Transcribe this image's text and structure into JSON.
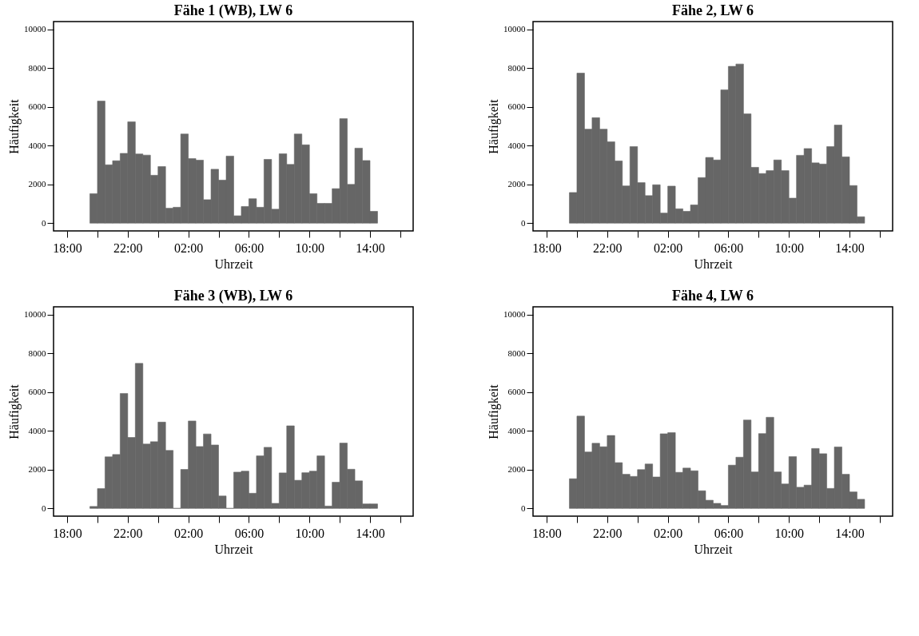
{
  "chart_data": [
    {
      "type": "histogram",
      "title": "Fähe 1 (WB), LW 6",
      "xlabel": "Uhrzeit",
      "ylabel": "Häufigkeit",
      "color": "#666666",
      "grid": false,
      "bins": [
        "2000-01-01T19:30",
        "2000-01-01T20:00",
        "2000-01-01T20:30",
        "2000-01-01T21:00",
        "2000-01-01T21:30",
        "2000-01-01T22:00",
        "2000-01-01T22:30",
        "2000-01-01T23:00",
        "2000-01-01T23:30",
        "2000-01-02T00:00",
        "2000-01-02T00:30",
        "2000-01-02T01:00",
        "2000-01-02T01:30",
        "2000-01-02T02:00",
        "2000-01-02T02:30",
        "2000-01-02T03:00",
        "2000-01-02T03:30",
        "2000-01-02T04:00",
        "2000-01-02T04:30",
        "2000-01-02T05:00",
        "2000-01-02T05:30",
        "2000-01-02T06:00",
        "2000-01-02T06:30",
        "2000-01-02T07:00",
        "2000-01-02T07:30",
        "2000-01-02T08:00",
        "2000-01-02T08:30",
        "2000-01-02T09:00",
        "2000-01-02T09:30",
        "2000-01-02T10:00",
        "2000-01-02T10:30",
        "2000-01-02T11:00",
        "2000-01-02T11:30",
        "2000-01-02T12:00",
        "2000-01-02T12:30",
        "2000-01-02T13:00",
        "2000-01-02T13:30",
        "2000-01-02T14:00",
        "2000-01-02T14:30"
      ],
      "values": [
        1520,
        6300,
        3010,
        3220,
        3600,
        5230,
        3570,
        3510,
        2470,
        2920,
        770,
        820,
        4600,
        3330,
        3250,
        1210,
        2780,
        2220,
        3460,
        380,
        860,
        1260,
        820,
        3290,
        720,
        3580,
        3030,
        4600,
        4040,
        1520,
        1020,
        1020,
        1780,
        5390,
        2000,
        3870,
        3230,
        610
      ],
      "xlim": [
        "2000-01-01T17:06",
        "2000-01-02T16:51"
      ],
      "ylim": [
        -400,
        10400
      ],
      "yticks": [
        0,
        2000,
        4000,
        6000,
        8000,
        10000
      ],
      "xticks": [
        {
          "value": "2000-01-01T18:00",
          "label": "18:00"
        },
        {
          "value": "2000-01-01T20:00",
          "label": null
        },
        {
          "value": "2000-01-01T22:00",
          "label": "22:00"
        },
        {
          "value": "2000-01-02T00:00",
          "label": null
        },
        {
          "value": "2000-01-02T02:00",
          "label": "02:00"
        },
        {
          "value": "2000-01-02T04:00",
          "label": null
        },
        {
          "value": "2000-01-02T06:00",
          "label": "06:00"
        },
        {
          "value": "2000-01-02T08:00",
          "label": null
        },
        {
          "value": "2000-01-02T10:00",
          "label": "10:00"
        },
        {
          "value": "2000-01-02T12:00",
          "label": null
        },
        {
          "value": "2000-01-02T14:00",
          "label": "14:00"
        },
        {
          "value": "2000-01-02T16:00",
          "label": null
        }
      ]
    },
    {
      "type": "histogram",
      "title": "Fähe 2, LW 6",
      "xlabel": "Uhrzeit",
      "ylabel": "Häufigkeit",
      "color": "#666666",
      "grid": false,
      "bins": [
        "2000-01-01T19:30",
        "2000-01-01T20:00",
        "2000-01-01T20:30",
        "2000-01-01T21:00",
        "2000-01-01T21:30",
        "2000-01-01T22:00",
        "2000-01-01T22:30",
        "2000-01-01T23:00",
        "2000-01-01T23:30",
        "2000-01-02T00:00",
        "2000-01-02T00:30",
        "2000-01-02T01:00",
        "2000-01-02T01:30",
        "2000-01-02T02:00",
        "2000-01-02T02:30",
        "2000-01-02T03:00",
        "2000-01-02T03:30",
        "2000-01-02T04:00",
        "2000-01-02T04:30",
        "2000-01-02T05:00",
        "2000-01-02T05:30",
        "2000-01-02T06:00",
        "2000-01-02T06:30",
        "2000-01-02T07:00",
        "2000-01-02T07:30",
        "2000-01-02T08:00",
        "2000-01-02T08:30",
        "2000-01-02T09:00",
        "2000-01-02T09:30",
        "2000-01-02T10:00",
        "2000-01-02T10:30",
        "2000-01-02T11:00",
        "2000-01-02T11:30",
        "2000-01-02T12:00",
        "2000-01-02T12:30",
        "2000-01-02T13:00",
        "2000-01-02T13:30",
        "2000-01-02T14:00",
        "2000-01-02T14:30",
        "2000-01-02T15:00"
      ],
      "values": [
        1580,
        7740,
        4850,
        5440,
        4850,
        4200,
        3210,
        1920,
        3950,
        2090,
        1420,
        1980,
        520,
        1910,
        740,
        610,
        940,
        2350,
        3390,
        3260,
        6880,
        8090,
        8210,
        5640,
        2880,
        2560,
        2710,
        3260,
        2710,
        1290,
        3500,
        3850,
        3110,
        3050,
        3950,
        5060,
        3420,
        1940,
        330
      ],
      "xlim": [
        "2000-01-01T17:06",
        "2000-01-02T16:51"
      ],
      "ylim": [
        -400,
        10400
      ],
      "yticks": [
        0,
        2000,
        4000,
        6000,
        8000,
        10000
      ],
      "xticks": [
        {
          "value": "2000-01-01T18:00",
          "label": "18:00"
        },
        {
          "value": "2000-01-01T20:00",
          "label": null
        },
        {
          "value": "2000-01-01T22:00",
          "label": "22:00"
        },
        {
          "value": "2000-01-02T00:00",
          "label": null
        },
        {
          "value": "2000-01-02T02:00",
          "label": "02:00"
        },
        {
          "value": "2000-01-02T04:00",
          "label": null
        },
        {
          "value": "2000-01-02T06:00",
          "label": "06:00"
        },
        {
          "value": "2000-01-02T08:00",
          "label": null
        },
        {
          "value": "2000-01-02T10:00",
          "label": "10:00"
        },
        {
          "value": "2000-01-02T12:00",
          "label": null
        },
        {
          "value": "2000-01-02T14:00",
          "label": "14:00"
        },
        {
          "value": "2000-01-02T16:00",
          "label": null
        }
      ]
    },
    {
      "type": "histogram",
      "title": "Fähe 3 (WB), LW 6",
      "xlabel": "Uhrzeit",
      "ylabel": "Häufigkeit",
      "color": "#666666",
      "grid": false,
      "bins": [
        "2000-01-01T19:30",
        "2000-01-01T20:00",
        "2000-01-01T20:30",
        "2000-01-01T21:00",
        "2000-01-01T21:30",
        "2000-01-01T22:00",
        "2000-01-01T22:30",
        "2000-01-01T23:00",
        "2000-01-01T23:30",
        "2000-01-02T00:00",
        "2000-01-02T00:30",
        "2000-01-02T01:00",
        "2000-01-02T01:30",
        "2000-01-02T02:00",
        "2000-01-02T02:30",
        "2000-01-02T03:00",
        "2000-01-02T03:30",
        "2000-01-02T04:00",
        "2000-01-02T04:30",
        "2000-01-02T05:00",
        "2000-01-02T05:30",
        "2000-01-02T06:00",
        "2000-01-02T06:30",
        "2000-01-02T07:00",
        "2000-01-02T07:30",
        "2000-01-02T08:00",
        "2000-01-02T08:30",
        "2000-01-02T09:00",
        "2000-01-02T09:30",
        "2000-01-02T10:00",
        "2000-01-02T10:30",
        "2000-01-02T11:00",
        "2000-01-02T11:30",
        "2000-01-02T12:00",
        "2000-01-02T12:30",
        "2000-01-02T13:00",
        "2000-01-02T13:30",
        "2000-01-02T14:00",
        "2000-01-02T14:30"
      ],
      "values": [
        100,
        1020,
        2660,
        2780,
        5930,
        3660,
        7480,
        3320,
        3440,
        4450,
        2990,
        0,
        2010,
        4510,
        3190,
        3840,
        3270,
        640,
        0,
        1870,
        1920,
        780,
        2710,
        3150,
        260,
        1830,
        4260,
        1450,
        1840,
        1920,
        2710,
        120,
        1350,
        3370,
        2020,
        1420,
        230,
        230
      ],
      "xlim": [
        "2000-01-01T17:06",
        "2000-01-02T16:51"
      ],
      "ylim": [
        -400,
        10400
      ],
      "yticks": [
        0,
        2000,
        4000,
        6000,
        8000,
        10000
      ],
      "xticks": [
        {
          "value": "2000-01-01T18:00",
          "label": "18:00"
        },
        {
          "value": "2000-01-01T20:00",
          "label": null
        },
        {
          "value": "2000-01-01T22:00",
          "label": "22:00"
        },
        {
          "value": "2000-01-02T00:00",
          "label": null
        },
        {
          "value": "2000-01-02T02:00",
          "label": "02:00"
        },
        {
          "value": "2000-01-02T04:00",
          "label": null
        },
        {
          "value": "2000-01-02T06:00",
          "label": "06:00"
        },
        {
          "value": "2000-01-02T08:00",
          "label": null
        },
        {
          "value": "2000-01-02T10:00",
          "label": "10:00"
        },
        {
          "value": "2000-01-02T12:00",
          "label": null
        },
        {
          "value": "2000-01-02T14:00",
          "label": "14:00"
        },
        {
          "value": "2000-01-02T16:00",
          "label": null
        }
      ]
    },
    {
      "type": "histogram",
      "title": "Fähe 4, LW 6",
      "xlabel": "Uhrzeit",
      "ylabel": "Häufigkeit",
      "color": "#666666",
      "grid": false,
      "bins": [
        "2000-01-01T19:30",
        "2000-01-01T20:00",
        "2000-01-01T20:30",
        "2000-01-01T21:00",
        "2000-01-01T21:30",
        "2000-01-01T22:00",
        "2000-01-01T22:30",
        "2000-01-01T23:00",
        "2000-01-01T23:30",
        "2000-01-02T00:00",
        "2000-01-02T00:30",
        "2000-01-02T01:00",
        "2000-01-02T01:30",
        "2000-01-02T02:00",
        "2000-01-02T02:30",
        "2000-01-02T03:00",
        "2000-01-02T03:30",
        "2000-01-02T04:00",
        "2000-01-02T04:30",
        "2000-01-02T05:00",
        "2000-01-02T05:30",
        "2000-01-02T06:00",
        "2000-01-02T06:30",
        "2000-01-02T07:00",
        "2000-01-02T07:30",
        "2000-01-02T08:00",
        "2000-01-02T08:30",
        "2000-01-02T09:00",
        "2000-01-02T09:30",
        "2000-01-02T10:00",
        "2000-01-02T10:30",
        "2000-01-02T11:00",
        "2000-01-02T11:30",
        "2000-01-02T12:00",
        "2000-01-02T12:30",
        "2000-01-02T13:00",
        "2000-01-02T13:30",
        "2000-01-02T14:00",
        "2000-01-02T14:30",
        "2000-01-02T15:00"
      ],
      "values": [
        1530,
        4760,
        2910,
        3360,
        3180,
        3760,
        2360,
        1760,
        1650,
        2000,
        2290,
        1620,
        3850,
        3910,
        1860,
        2080,
        1940,
        910,
        420,
        260,
        150,
        2230,
        2640,
        4560,
        1880,
        3860,
        4700,
        1880,
        1260,
        2670,
        1090,
        1200,
        3090,
        2820,
        1030,
        3170,
        1760,
        850,
        470
      ],
      "xlim": [
        "2000-01-01T17:06",
        "2000-01-02T16:51"
      ],
      "ylim": [
        -400,
        10400
      ],
      "yticks": [
        0,
        2000,
        4000,
        6000,
        8000,
        10000
      ],
      "xticks": [
        {
          "value": "2000-01-01T18:00",
          "label": "18:00"
        },
        {
          "value": "2000-01-01T20:00",
          "label": null
        },
        {
          "value": "2000-01-01T22:00",
          "label": "22:00"
        },
        {
          "value": "2000-01-02T00:00",
          "label": null
        },
        {
          "value": "2000-01-02T02:00",
          "label": "02:00"
        },
        {
          "value": "2000-01-02T04:00",
          "label": null
        },
        {
          "value": "2000-01-02T06:00",
          "label": "06:00"
        },
        {
          "value": "2000-01-02T08:00",
          "label": null
        },
        {
          "value": "2000-01-02T10:00",
          "label": "10:00"
        },
        {
          "value": "2000-01-02T12:00",
          "label": null
        },
        {
          "value": "2000-01-02T14:00",
          "label": "14:00"
        },
        {
          "value": "2000-01-02T16:00",
          "label": null
        }
      ]
    }
  ]
}
